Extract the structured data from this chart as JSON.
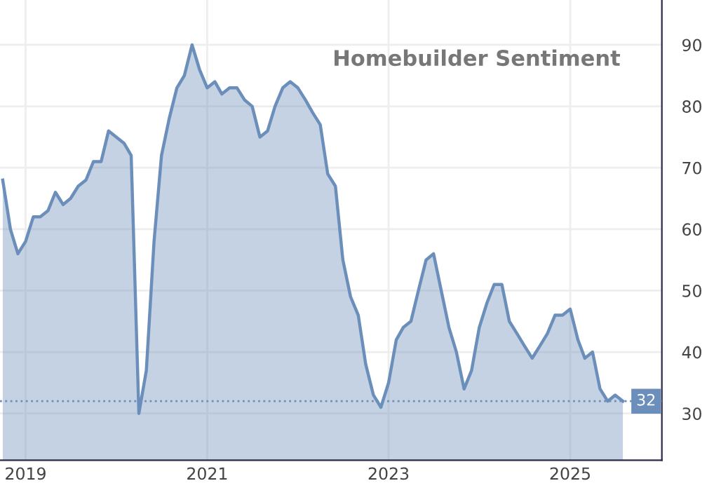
{
  "chart_data": {
    "type": "area",
    "title": "Homebuilder Sentiment",
    "x": [
      "2018-10",
      "2018-11",
      "2018-12",
      "2019-01",
      "2019-02",
      "2019-03",
      "2019-04",
      "2019-05",
      "2019-06",
      "2019-07",
      "2019-08",
      "2019-09",
      "2019-10",
      "2019-11",
      "2019-12",
      "2020-01",
      "2020-02",
      "2020-03",
      "2020-04",
      "2020-05",
      "2020-06",
      "2020-07",
      "2020-08",
      "2020-09",
      "2020-10",
      "2020-11",
      "2020-12",
      "2021-01",
      "2021-02",
      "2021-03",
      "2021-04",
      "2021-05",
      "2021-06",
      "2021-07",
      "2021-08",
      "2021-09",
      "2021-10",
      "2021-11",
      "2021-12",
      "2022-01",
      "2022-02",
      "2022-03",
      "2022-04",
      "2022-05",
      "2022-06",
      "2022-07",
      "2022-08",
      "2022-09",
      "2022-10",
      "2022-11",
      "2022-12",
      "2023-01",
      "2023-02",
      "2023-03",
      "2023-04",
      "2023-05",
      "2023-06",
      "2023-07",
      "2023-08",
      "2023-09",
      "2023-10",
      "2023-11",
      "2023-12",
      "2024-01",
      "2024-02",
      "2024-03",
      "2024-04",
      "2024-05",
      "2024-06",
      "2024-07",
      "2024-08",
      "2024-09",
      "2024-10",
      "2024-11",
      "2024-12",
      "2025-01",
      "2025-02",
      "2025-03",
      "2025-04",
      "2025-05",
      "2025-06",
      "2025-07",
      "2025-08"
    ],
    "series": [
      {
        "color": "#6b8fba",
        "values": [
          68,
          60,
          56,
          58,
          62,
          62,
          63,
          66,
          64,
          65,
          67,
          68,
          71,
          71,
          76,
          75,
          74,
          72,
          30,
          37,
          58,
          72,
          78,
          83,
          85,
          90,
          86,
          83,
          84,
          82,
          83,
          83,
          81,
          80,
          75,
          76,
          80,
          83,
          84,
          83,
          81,
          79,
          77,
          69,
          67,
          55,
          49,
          46,
          38,
          33,
          31,
          35,
          42,
          44,
          45,
          50,
          55,
          56,
          50,
          44,
          40,
          34,
          37,
          44,
          48,
          51,
          51,
          45,
          43,
          41,
          39,
          41,
          43,
          46,
          46,
          47,
          42,
          39,
          40,
          34,
          32,
          33,
          32
        ]
      }
    ],
    "xlim": [
      "2018-09-20",
      "2026-01-05"
    ],
    "xticks": [
      {
        "value": "2019-01",
        "label": "2019"
      },
      {
        "value": "2021-01",
        "label": "2021"
      },
      {
        "value": "2023-01",
        "label": "2023"
      },
      {
        "value": "2025-01",
        "label": "2025"
      }
    ],
    "ylim": [
      22.4,
      97.3
    ],
    "yticks": [
      30,
      40,
      50,
      60,
      70,
      80,
      90
    ],
    "ref_lines": [
      {
        "axis": "y",
        "value": 32,
        "label": "32",
        "color": "#6b8fba",
        "line_style": "dotted"
      }
    ],
    "grid": true
  }
}
